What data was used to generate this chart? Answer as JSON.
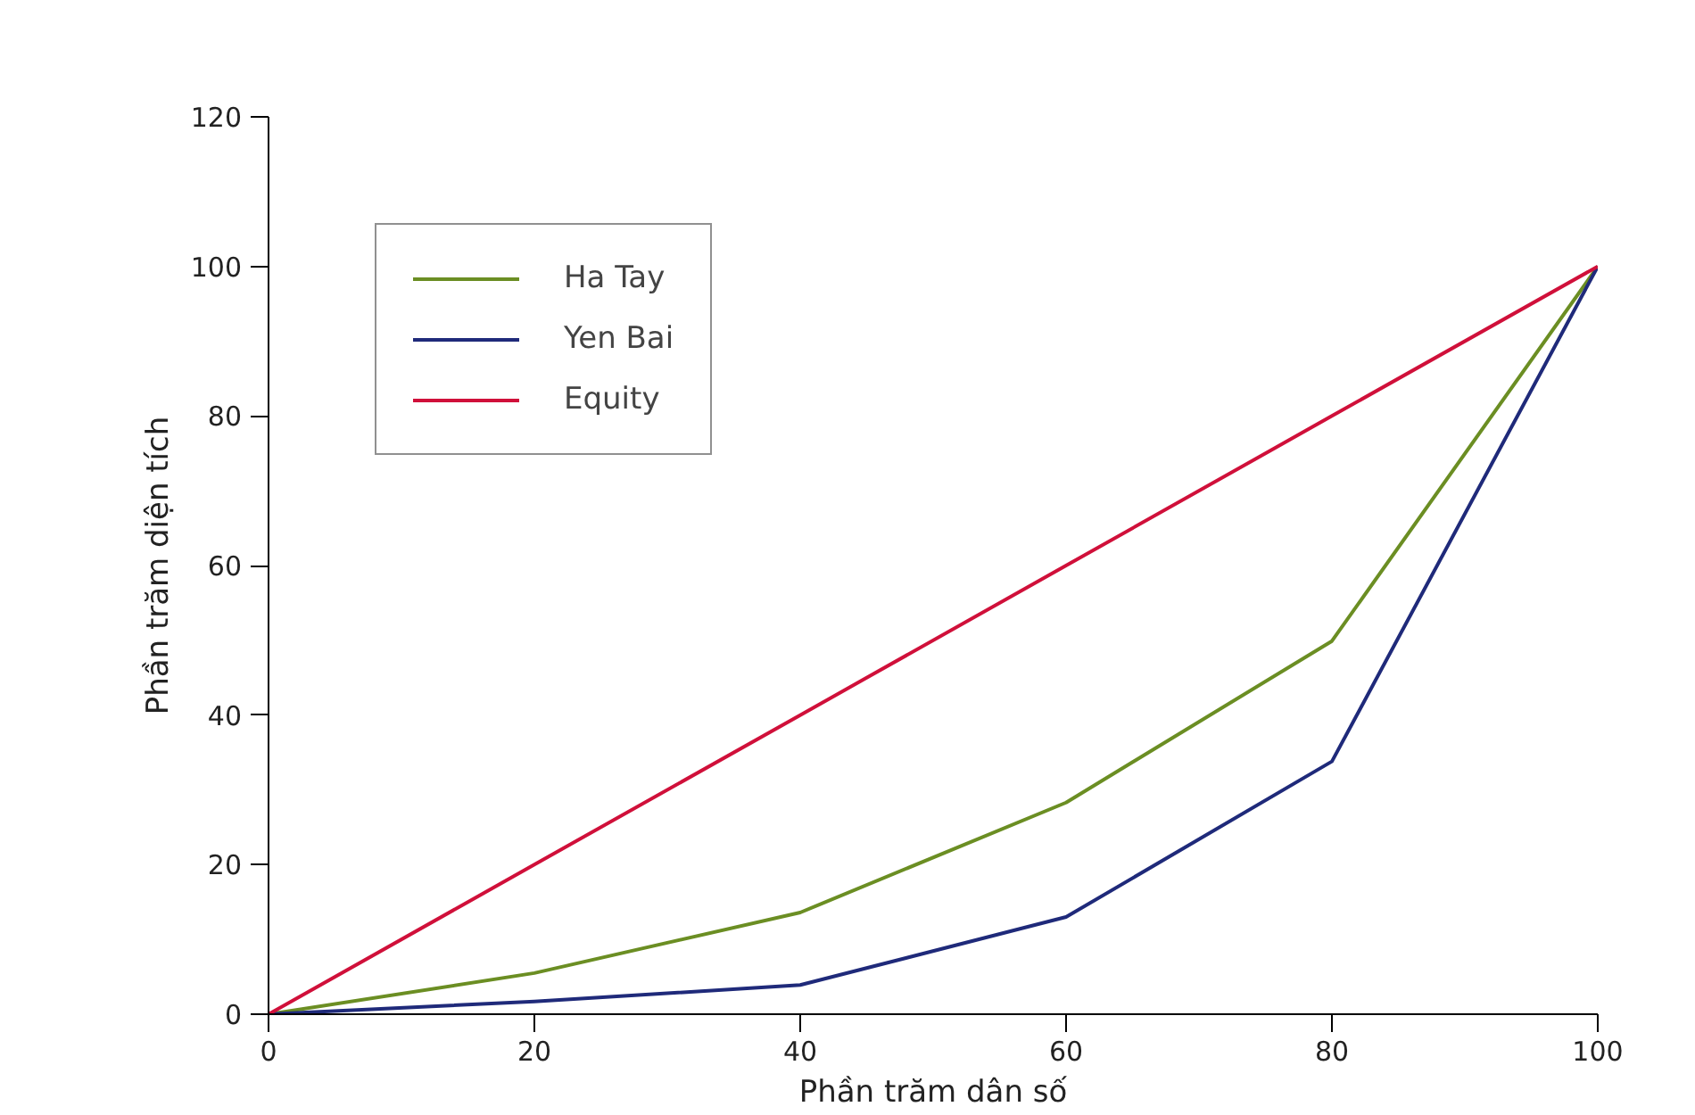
{
  "chart_data": {
    "type": "line",
    "xlabel": "Phần trăm dân số",
    "ylabel": "Phần trăm diện tích",
    "x": [
      0,
      20,
      40,
      60,
      80,
      100
    ],
    "series": [
      {
        "name": "Ha Tay",
        "color": "#6b8e23",
        "values": [
          0,
          5.5,
          13.6,
          28.3,
          49.9,
          100
        ]
      },
      {
        "name": "Yen Bai",
        "color": "#1f2a7a",
        "values": [
          0,
          1.7,
          3.9,
          13,
          33.8,
          100
        ]
      },
      {
        "name": "Equity",
        "color": "#d0103a",
        "values": [
          0,
          20,
          40,
          60,
          80,
          100
        ]
      }
    ],
    "xlim": [
      0,
      100
    ],
    "ylim": [
      0,
      120
    ],
    "xticks": [
      0,
      20,
      40,
      60,
      80,
      100
    ],
    "yticks": [
      0,
      20,
      40,
      60,
      80,
      100,
      120
    ],
    "grid": false,
    "legend": "top left",
    "line_style": "solid",
    "marker": "none"
  }
}
